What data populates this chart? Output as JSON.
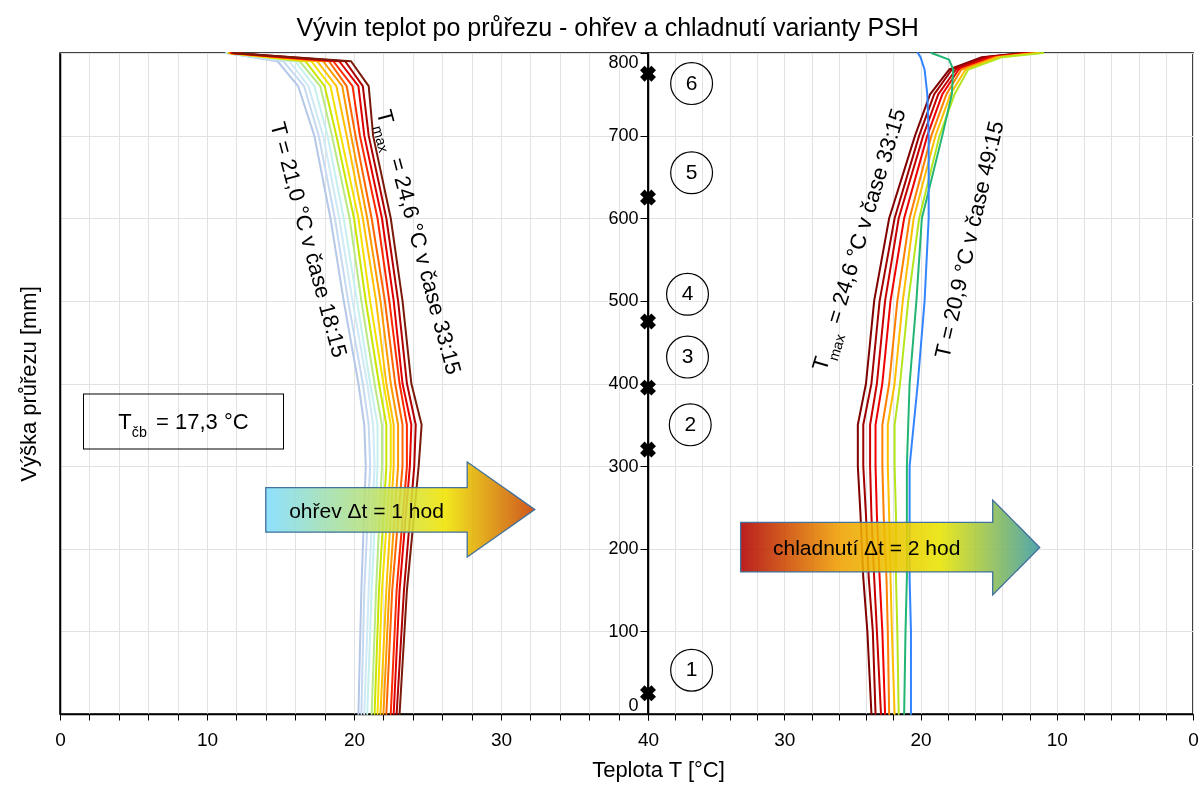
{
  "chart_data": [
    {
      "type": "line",
      "title": "Vývin teplot po průřezu - ohřev a chladnutí varianty PSH",
      "xlabel": "Teplota T [°C]",
      "ylabel": "Výška průřezu [mm]",
      "xlim": [
        0,
        40
      ],
      "ylim": [
        0,
        800
      ],
      "xticks": [
        0,
        {
          "value": 2,
          "label": null
        },
        {
          "value": 4,
          "label": null
        },
        {
          "value": 6,
          "label": null
        },
        {
          "value": 8,
          "label": null
        },
        10,
        {
          "value": 12,
          "label": null
        },
        {
          "value": 14,
          "label": null
        },
        {
          "value": 16,
          "label": null
        },
        {
          "value": 18,
          "label": null
        },
        20,
        {
          "value": 22,
          "label": null
        },
        {
          "value": 24,
          "label": null
        },
        {
          "value": 26,
          "label": null
        },
        {
          "value": 28,
          "label": null
        },
        30,
        {
          "value": 32,
          "label": null
        },
        {
          "value": 34,
          "label": null
        },
        {
          "value": 36,
          "label": null
        },
        {
          "value": 38,
          "label": null
        },
        {
          "value": 40,
          "label": null
        }
      ],
      "yticks": [
        0,
        100,
        200,
        300,
        400,
        500,
        600,
        700,
        800
      ],
      "grid": true,
      "tick_labels": "x",
      "series": [
        {
          "color": "#b4c7e7",
          "x": [
            20.3,
            20.5,
            20.8,
            20.7,
            20.3,
            19.3,
            18.4,
            17.3,
            16.2,
            14.8,
            11.3
          ],
          "values": [
            0,
            150,
            300,
            350,
            400,
            500,
            600,
            700,
            760,
            790,
            800
          ]
        },
        {
          "color": "#c5d9f1",
          "x": [
            20.5,
            20.7,
            21.1,
            21.0,
            20.6,
            19.6,
            18.7,
            17.6,
            16.6,
            15.2,
            11.3
          ],
          "values": [
            0,
            150,
            300,
            350,
            400,
            500,
            600,
            700,
            760,
            790,
            800
          ]
        },
        {
          "color": "#cfe9f5",
          "x": [
            20.7,
            21.0,
            21.4,
            21.3,
            20.9,
            19.9,
            19.0,
            17.9,
            16.9,
            15.6,
            11.4
          ],
          "values": [
            0,
            150,
            300,
            350,
            400,
            500,
            600,
            700,
            760,
            790,
            800
          ]
        },
        {
          "color": "#c6f0ef",
          "x": [
            20.9,
            21.2,
            21.6,
            21.6,
            21.1,
            20.2,
            19.3,
            18.2,
            17.3,
            16.0,
            11.4
          ],
          "values": [
            0,
            150,
            300,
            350,
            400,
            500,
            600,
            700,
            760,
            790,
            800
          ]
        },
        {
          "color": "#b8e986",
          "x": [
            21.2,
            21.5,
            21.9,
            21.9,
            21.4,
            20.5,
            19.7,
            18.5,
            17.7,
            16.3,
            11.4
          ],
          "values": [
            0,
            150,
            300,
            350,
            400,
            500,
            600,
            700,
            760,
            790,
            800
          ]
        },
        {
          "color": "#c8e600",
          "x": [
            21.4,
            21.7,
            22.2,
            22.2,
            21.7,
            20.8,
            20.0,
            18.8,
            18.0,
            16.7,
            11.5
          ],
          "values": [
            0,
            150,
            300,
            350,
            400,
            500,
            600,
            700,
            760,
            790,
            800
          ]
        },
        {
          "color": "#f5e000",
          "x": [
            21.6,
            21.9,
            22.5,
            22.5,
            22.0,
            21.1,
            20.3,
            19.1,
            18.4,
            17.1,
            11.5
          ],
          "values": [
            0,
            150,
            300,
            350,
            400,
            500,
            600,
            700,
            760,
            790,
            800
          ]
        },
        {
          "color": "#ffc000",
          "x": [
            21.8,
            22.2,
            22.7,
            22.7,
            22.2,
            21.5,
            20.6,
            19.5,
            18.8,
            17.5,
            11.5
          ],
          "values": [
            0,
            150,
            300,
            350,
            400,
            500,
            600,
            700,
            760,
            790,
            800
          ]
        },
        {
          "color": "#ff9900",
          "x": [
            22.0,
            22.4,
            23.0,
            23.0,
            22.5,
            21.8,
            20.9,
            19.8,
            19.2,
            17.9,
            11.6
          ],
          "values": [
            0,
            150,
            300,
            350,
            400,
            500,
            600,
            700,
            760,
            790,
            800
          ]
        },
        {
          "color": "#ff6600",
          "x": [
            22.2,
            22.6,
            23.3,
            23.3,
            22.8,
            22.1,
            21.2,
            20.1,
            19.5,
            18.3,
            11.6
          ],
          "values": [
            0,
            150,
            300,
            350,
            400,
            500,
            600,
            700,
            760,
            790,
            800
          ]
        },
        {
          "color": "#ff2a00",
          "x": [
            22.5,
            22.9,
            23.6,
            23.6,
            23.1,
            22.4,
            21.6,
            20.4,
            19.9,
            18.6,
            11.6
          ],
          "values": [
            0,
            150,
            300,
            350,
            400,
            500,
            600,
            700,
            760,
            790,
            800
          ]
        },
        {
          "color": "#e00000",
          "x": [
            22.7,
            23.1,
            23.8,
            23.9,
            23.3,
            22.7,
            21.9,
            20.7,
            20.3,
            19.0,
            11.7
          ],
          "values": [
            0,
            150,
            300,
            350,
            400,
            500,
            600,
            700,
            760,
            790,
            800
          ]
        },
        {
          "color": "#b00000",
          "x": [
            22.9,
            23.4,
            24.1,
            24.2,
            23.6,
            23.0,
            22.2,
            21.0,
            20.6,
            19.4,
            11.7
          ],
          "values": [
            0,
            150,
            300,
            350,
            400,
            500,
            600,
            700,
            760,
            790,
            800
          ]
        },
        {
          "color": "#7a1a0a",
          "x": [
            23.1,
            23.6,
            24.4,
            24.6,
            23.9,
            23.3,
            22.5,
            21.3,
            21.0,
            19.8,
            11.8
          ],
          "values": [
            0,
            150,
            300,
            350,
            400,
            500,
            600,
            700,
            760,
            790,
            800
          ]
        }
      ],
      "annotations": [
        "T = 21,0 °C v čase 18:15",
        "T$_{max}$ = 24,6 °C v čase 33:15",
        "T$_{čb}$ = 17,3 °C",
        "ohřev Δt = 1 hod"
      ]
    },
    {
      "type": "line",
      "xlim": [
        40,
        0
      ],
      "ylim": [
        0,
        800
      ],
      "xticks": [
        40,
        {
          "value": 38,
          "label": null
        },
        {
          "value": 36,
          "label": null
        },
        {
          "value": 34,
          "label": null
        },
        {
          "value": 32,
          "label": null
        },
        30,
        {
          "value": 28,
          "label": null
        },
        {
          "value": 26,
          "label": null
        },
        {
          "value": 24,
          "label": null
        },
        {
          "value": 22,
          "label": null
        },
        20,
        {
          "value": 18,
          "label": null
        },
        {
          "value": 16,
          "label": null
        },
        {
          "value": 14,
          "label": null
        },
        {
          "value": 12,
          "label": null
        },
        10,
        {
          "value": 8,
          "label": null
        },
        {
          "value": 6,
          "label": null
        },
        {
          "value": 4,
          "label": null
        },
        {
          "value": 2,
          "label": null
        },
        0
      ],
      "yticks": [
        0,
        100,
        200,
        300,
        400,
        500,
        600,
        700,
        800
      ],
      "grid": true,
      "series": [
        {
          "color": "#7f0000",
          "x": [
            23.6,
            23.9,
            24.2,
            24.4,
            24.6,
            24.6,
            24.0,
            23.4,
            22.3,
            20.4,
            19.3,
            17.9,
            15.5,
            12.5
          ],
          "values": [
            0,
            100,
            165,
            240,
            300,
            350,
            400,
            500,
            600,
            700,
            750,
            780,
            795,
            800
          ]
        },
        {
          "color": "#a00000",
          "x": [
            23.3,
            23.5,
            23.8,
            24.0,
            24.2,
            24.2,
            23.6,
            23.0,
            21.9,
            20.1,
            19.0,
            17.7,
            15.3,
            12.3
          ],
          "values": [
            0,
            100,
            165,
            240,
            300,
            350,
            400,
            500,
            600,
            700,
            750,
            780,
            795,
            800
          ]
        },
        {
          "color": "#c80000",
          "x": [
            22.9,
            23.2,
            23.4,
            23.6,
            23.7,
            23.7,
            23.2,
            22.6,
            21.6,
            19.8,
            18.7,
            17.4,
            15.0,
            12.0
          ],
          "values": [
            0,
            100,
            165,
            240,
            300,
            350,
            400,
            500,
            600,
            700,
            750,
            780,
            795,
            800
          ]
        },
        {
          "color": "#f00000",
          "x": [
            22.6,
            22.8,
            23.0,
            23.2,
            23.3,
            23.3,
            22.8,
            22.2,
            21.2,
            19.5,
            18.4,
            17.2,
            14.8,
            11.8
          ],
          "values": [
            0,
            100,
            165,
            240,
            300,
            350,
            400,
            500,
            600,
            700,
            750,
            780,
            795,
            800
          ]
        },
        {
          "color": "#ff7f00",
          "x": [
            22.3,
            22.4,
            22.5,
            22.7,
            22.8,
            22.8,
            22.3,
            21.7,
            20.8,
            19.2,
            18.1,
            17.0,
            14.5,
            11.5
          ],
          "values": [
            0,
            100,
            165,
            240,
            300,
            350,
            400,
            500,
            600,
            700,
            750,
            780,
            795,
            800
          ]
        },
        {
          "color": "#ffbf00",
          "x": [
            21.9,
            22.1,
            22.2,
            22.3,
            22.4,
            22.4,
            21.9,
            21.3,
            20.5,
            18.9,
            17.8,
            16.7,
            14.3,
            11.3
          ],
          "values": [
            0,
            100,
            165,
            240,
            300,
            350,
            400,
            500,
            600,
            700,
            750,
            780,
            795,
            800
          ]
        },
        {
          "color": "#b5e61d",
          "x": [
            21.6,
            21.7,
            21.8,
            21.8,
            21.9,
            21.9,
            21.5,
            20.9,
            20.1,
            18.6,
            17.5,
            16.5,
            14.0,
            11.0
          ],
          "values": [
            0,
            100,
            165,
            240,
            300,
            350,
            400,
            500,
            600,
            700,
            750,
            780,
            795,
            800
          ]
        },
        {
          "color": "#22b573",
          "x": [
            21.2,
            21.1,
            21.0,
            21.0,
            21.0,
            20.9,
            20.8,
            20.3,
            19.9,
            18.4,
            17.7,
            17.6,
            17.9,
            19.2
          ],
          "values": [
            0,
            100,
            165,
            240,
            300,
            350,
            400,
            500,
            600,
            700,
            750,
            780,
            792,
            800
          ]
        },
        {
          "color": "#3385ff",
          "x": [
            20.7,
            20.7,
            20.8,
            20.8,
            20.8,
            20.5,
            20.2,
            19.7,
            19.4,
            19.4,
            19.5,
            19.7,
            20.0,
            20.2
          ],
          "values": [
            0,
            100,
            165,
            240,
            300,
            350,
            400,
            500,
            600,
            700,
            750,
            780,
            795,
            800
          ]
        },
        {
          "type": "scatter",
          "marker": "cross",
          "color": "#000000",
          "x": [
            40,
            40,
            40,
            40,
            40,
            40
          ],
          "values": [
            25,
            320,
            395,
            475,
            625,
            775
          ]
        }
      ],
      "annotations": [
        "1",
        "2",
        "3",
        "4",
        "5",
        "6",
        "T$_{max}$ = 24,6 °C v čase 33:15",
        "T = 20,9 °C v čase 49:15",
        "chladnutí Δt = 2 hod"
      ]
    }
  ]
}
